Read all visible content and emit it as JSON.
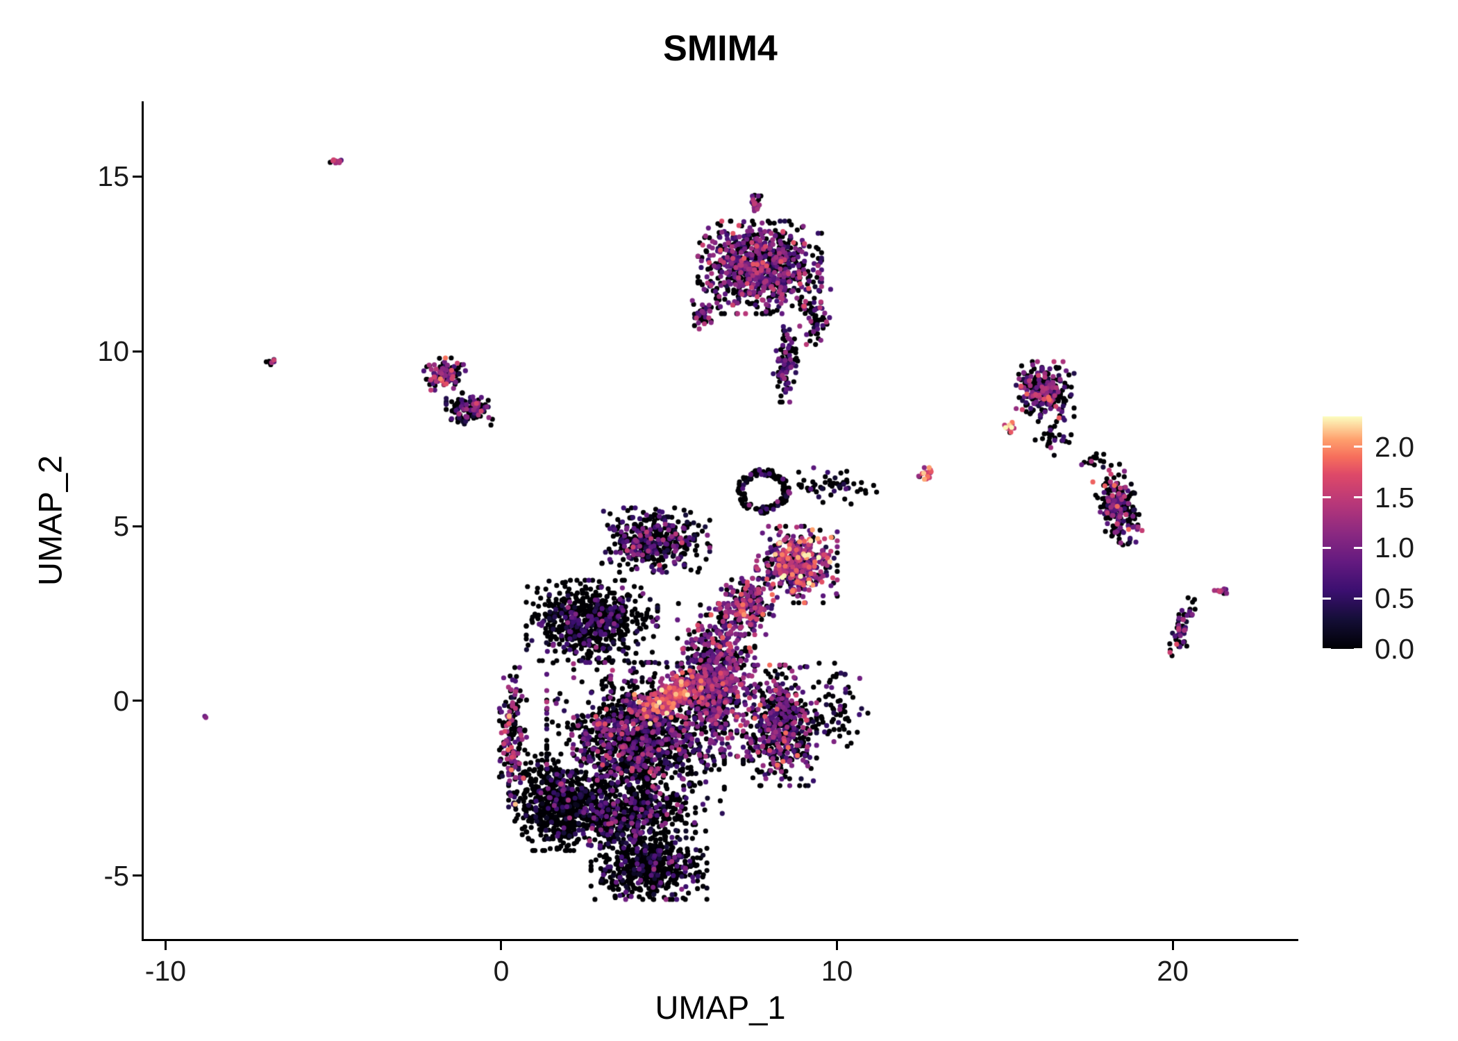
{
  "title": "SMIM4",
  "chart_data": {
    "type": "scatter",
    "title": "SMIM4",
    "xlabel": "UMAP_1",
    "ylabel": "UMAP_2",
    "xlim": [
      -10.65,
      23.7
    ],
    "ylim": [
      -6.85,
      17.15
    ],
    "x_ticks": [
      {
        "v": -10,
        "label": "-10"
      },
      {
        "v": 0,
        "label": "0"
      },
      {
        "v": 10,
        "label": "10"
      },
      {
        "v": 20,
        "label": "20"
      }
    ],
    "y_ticks": [
      {
        "v": 15,
        "label": "15"
      },
      {
        "v": 10,
        "label": "10"
      },
      {
        "v": 5,
        "label": "5"
      },
      {
        "v": 0,
        "label": "0"
      },
      {
        "v": -5,
        "label": "-5"
      }
    ],
    "grid": false,
    "legend_position": "right",
    "point_radius": 3.6,
    "seed": 1337,
    "background": "#ffffff",
    "colorbar": {
      "title": "",
      "vmin": 0.0,
      "vmax": 2.3,
      "ticks": [
        {
          "v": 2.0,
          "label": "2.0"
        },
        {
          "v": 1.5,
          "label": "1.5"
        },
        {
          "v": 1.0,
          "label": "1.0"
        },
        {
          "v": 0.5,
          "label": "0.5"
        },
        {
          "v": 0.0,
          "label": "0.0"
        }
      ],
      "colormap": "magma",
      "stops": [
        [
          0.0,
          "#000004"
        ],
        [
          0.125,
          "#140e36"
        ],
        [
          0.25,
          "#3b0f70"
        ],
        [
          0.375,
          "#641a80"
        ],
        [
          0.5,
          "#8c2981"
        ],
        [
          0.625,
          "#b73779"
        ],
        [
          0.75,
          "#de4968"
        ],
        [
          0.825,
          "#f66e5c"
        ],
        [
          0.9,
          "#fe9f6d"
        ],
        [
          1.0,
          "#fcfdbf"
        ]
      ]
    },
    "clusters": [
      {
        "name": "main-core",
        "cx": 4.0,
        "cy": -1.2,
        "rx": 2.3,
        "ry": 2.0,
        "n": 1500,
        "zero": 0.6,
        "mean": 0.7,
        "sd": 0.45
      },
      {
        "name": "main-left-edge",
        "cx": 0.35,
        "cy": -1.0,
        "rx": 0.35,
        "ry": 1.7,
        "n": 160,
        "zero": 0.45,
        "mean": 1.0,
        "sd": 0.5
      },
      {
        "name": "main-bottomleft",
        "cx": 1.6,
        "cy": -2.9,
        "rx": 1.2,
        "ry": 1.2,
        "n": 600,
        "zero": 0.82,
        "mean": 0.45,
        "sd": 0.3
      },
      {
        "name": "main-upperleft-band",
        "cx": 2.7,
        "cy": 2.3,
        "rx": 1.7,
        "ry": 1.0,
        "n": 650,
        "zero": 0.75,
        "mean": 0.5,
        "sd": 0.35
      },
      {
        "name": "main-top-lobe",
        "cx": 4.6,
        "cy": 4.6,
        "rx": 1.4,
        "ry": 0.8,
        "n": 420,
        "zero": 0.6,
        "mean": 0.7,
        "sd": 0.4
      },
      {
        "name": "main-hot-streak",
        "cx": 5.0,
        "cy": 0.1,
        "rx": 1.1,
        "ry": 0.5,
        "n": 260,
        "zero": 0.06,
        "mean": 1.45,
        "sd": 0.35,
        "rot": 25
      },
      {
        "name": "main-purple-column",
        "cx": 6.4,
        "cy": 0.6,
        "rx": 1.0,
        "ry": 1.9,
        "n": 750,
        "zero": 0.33,
        "mean": 0.9,
        "sd": 0.4
      },
      {
        "name": "main-right-lobe",
        "cx": 8.3,
        "cy": -0.7,
        "rx": 0.95,
        "ry": 1.5,
        "n": 520,
        "zero": 0.5,
        "mean": 0.85,
        "sd": 0.45
      },
      {
        "name": "main-neck",
        "cx": 7.3,
        "cy": 2.7,
        "rx": 0.7,
        "ry": 0.7,
        "n": 200,
        "zero": 0.35,
        "mean": 1.0,
        "sd": 0.45
      },
      {
        "name": "main-bottom-lobe",
        "cx": 4.4,
        "cy": -4.7,
        "rx": 1.5,
        "ry": 0.85,
        "n": 550,
        "zero": 0.78,
        "mean": 0.5,
        "sd": 0.35
      },
      {
        "name": "main-bottom-band",
        "cx": 3.6,
        "cy": -3.3,
        "rx": 1.9,
        "ry": 0.8,
        "n": 450,
        "zero": 0.72,
        "mean": 0.55,
        "sd": 0.35
      },
      {
        "name": "right-warm",
        "cx": 8.8,
        "cy": 3.9,
        "rx": 1.05,
        "ry": 0.95,
        "n": 430,
        "zero": 0.28,
        "mean": 1.15,
        "sd": 0.5
      },
      {
        "name": "ring",
        "cx": 7.8,
        "cy": 6.0,
        "rx": 0.75,
        "ry": 0.6,
        "n": 150,
        "zero": 0.82,
        "mean": 0.5,
        "sd": 0.3,
        "shape": "ring"
      },
      {
        "name": "ring-trail",
        "cx": 9.8,
        "cy": 6.15,
        "rx": 1.2,
        "ry": 0.45,
        "n": 55,
        "zero": 0.8,
        "mean": 0.6,
        "sd": 0.35
      },
      {
        "name": "sparse-right",
        "cx": 10.0,
        "cy": -0.3,
        "rx": 0.8,
        "ry": 1.2,
        "n": 70,
        "zero": 0.75,
        "mean": 0.6,
        "sd": 0.35
      },
      {
        "name": "top-cluster",
        "cx": 7.7,
        "cy": 12.4,
        "rx": 1.6,
        "ry": 1.15,
        "n": 850,
        "zero": 0.42,
        "mean": 0.85,
        "sd": 0.4
      },
      {
        "name": "top-spike",
        "cx": 7.55,
        "cy": 14.3,
        "rx": 0.2,
        "ry": 0.25,
        "n": 25,
        "zero": 0.3,
        "mean": 1.1,
        "sd": 0.4
      },
      {
        "name": "top-tail",
        "cx": 8.5,
        "cy": 9.7,
        "rx": 0.35,
        "ry": 1.0,
        "n": 90,
        "zero": 0.55,
        "mean": 0.8,
        "sd": 0.4
      },
      {
        "name": "top-left-tip",
        "cx": 6.0,
        "cy": 11.1,
        "rx": 0.3,
        "ry": 0.4,
        "n": 40,
        "zero": 0.5,
        "mean": 0.9,
        "sd": 0.4
      },
      {
        "name": "top-right-edge",
        "cx": 9.35,
        "cy": 11.0,
        "rx": 0.4,
        "ry": 0.7,
        "n": 60,
        "zero": 0.5,
        "mean": 0.8,
        "sd": 0.4
      },
      {
        "name": "left-small-upper",
        "cx": -1.7,
        "cy": 9.35,
        "rx": 0.55,
        "ry": 0.4,
        "n": 100,
        "zero": 0.45,
        "mean": 0.9,
        "sd": 0.5
      },
      {
        "name": "left-small-lower",
        "cx": -0.95,
        "cy": 8.35,
        "rx": 0.6,
        "ry": 0.4,
        "n": 110,
        "zero": 0.55,
        "mean": 0.8,
        "sd": 0.45
      },
      {
        "name": "topleft-tiny",
        "cx": -4.9,
        "cy": 15.4,
        "rx": 0.16,
        "ry": 0.1,
        "n": 12,
        "zero": 0.15,
        "mean": 1.2,
        "sd": 0.3,
        "rot": 35
      },
      {
        "name": "left-tiny",
        "cx": -6.85,
        "cy": 9.7,
        "rx": 0.13,
        "ry": 0.1,
        "n": 8,
        "zero": 0.35,
        "mean": 1.2,
        "sd": 0.5
      },
      {
        "name": "far-left-dot",
        "cx": -8.8,
        "cy": -0.45,
        "rx": 0.06,
        "ry": 0.05,
        "n": 2,
        "zero": 0.0,
        "mean": 1.0,
        "sd": 0.2
      },
      {
        "name": "mid-orange-tiny",
        "cx": 12.6,
        "cy": 6.5,
        "rx": 0.28,
        "ry": 0.15,
        "n": 16,
        "zero": 0.1,
        "mean": 1.7,
        "sd": 0.3
      },
      {
        "name": "right-upper",
        "cx": 16.2,
        "cy": 8.9,
        "rx": 0.75,
        "ry": 0.7,
        "n": 260,
        "zero": 0.48,
        "mean": 0.85,
        "sd": 0.45
      },
      {
        "name": "right-upper-warm",
        "cx": 15.2,
        "cy": 7.85,
        "rx": 0.18,
        "ry": 0.15,
        "n": 12,
        "zero": 0.1,
        "mean": 1.6,
        "sd": 0.3
      },
      {
        "name": "right-upper-tail",
        "cx": 16.4,
        "cy": 7.6,
        "rx": 0.5,
        "ry": 0.5,
        "n": 30,
        "zero": 0.75,
        "mean": 0.6,
        "sd": 0.3
      },
      {
        "name": "right-lower",
        "cx": 18.35,
        "cy": 5.6,
        "rx": 0.5,
        "ry": 1.0,
        "n": 220,
        "zero": 0.5,
        "mean": 0.85,
        "sd": 0.45,
        "rot": 12
      },
      {
        "name": "right-lower-trail",
        "cx": 17.6,
        "cy": 6.9,
        "rx": 0.3,
        "ry": 0.3,
        "n": 15,
        "zero": 0.6,
        "mean": 0.7,
        "sd": 0.35
      },
      {
        "name": "far-right-chain",
        "cx": 20.3,
        "cy": 2.1,
        "rx": 0.22,
        "ry": 0.75,
        "n": 55,
        "zero": 0.45,
        "mean": 0.9,
        "sd": 0.5,
        "rot": -15
      },
      {
        "name": "far-right-streak",
        "cx": 21.5,
        "cy": 3.15,
        "rx": 0.22,
        "ry": 0.09,
        "n": 10,
        "zero": 0.15,
        "mean": 1.15,
        "sd": 0.3,
        "rot": 10
      }
    ],
    "voids": [
      {
        "cx": 2.5,
        "cy": 0.15,
        "r": 0.55,
        "keep": 0.15
      },
      {
        "cx": 2.0,
        "cy": -1.5,
        "r": 0.45,
        "keep": 0.2
      },
      {
        "cx": 5.0,
        "cy": -2.3,
        "r": 0.4,
        "keep": 0.35
      }
    ]
  }
}
